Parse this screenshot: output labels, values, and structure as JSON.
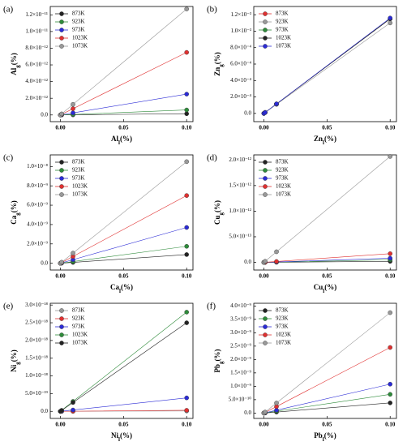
{
  "chart_data": [
    {
      "type": "line",
      "label": "(a)",
      "ylabel": [
        "Al",
        "g",
        "(%)"
      ],
      "xlabel": [
        "Al",
        "l",
        "(%)"
      ],
      "x": [
        0,
        0.001,
        0.01,
        0.1
      ],
      "xlim": [
        -0.008,
        0.105
      ],
      "xticks": [
        {
          "value": 0,
          "label": "0.00"
        },
        {
          "value": 0.05,
          "label": "0.05"
        },
        {
          "value": 0.1,
          "label": "0.10"
        }
      ],
      "ylim": [
        -8e-13,
        1.3e-11
      ],
      "yticks": [
        {
          "value": 0,
          "label": "0.0"
        },
        {
          "value": 2e-12,
          "label": "2.0×10⁻¹²"
        },
        {
          "value": 4e-12,
          "label": "4.0×10⁻¹²"
        },
        {
          "value": 6e-12,
          "label": "6.0×10⁻¹²"
        },
        {
          "value": 8e-12,
          "label": "8.0×10⁻¹²"
        },
        {
          "value": 1e-11,
          "label": "1.0×10⁻¹¹"
        },
        {
          "value": 1.2e-11,
          "label": "1.2×10⁻¹¹"
        }
      ],
      "series": [
        {
          "name": "873K",
          "color": "#222222",
          "values": [
            0,
            1.5e-15,
            1.5e-14,
            1.5e-13
          ]
        },
        {
          "name": "923K",
          "color": "#2e8b3a",
          "values": [
            0,
            6e-15,
            6e-14,
            6e-13
          ]
        },
        {
          "name": "973K",
          "color": "#2b2bd6",
          "values": [
            0,
            2.5e-14,
            2.5e-13,
            2.5e-12
          ]
        },
        {
          "name": "1023K",
          "color": "#e03030",
          "values": [
            0,
            7.5e-14,
            7.5e-13,
            7.5e-12
          ]
        },
        {
          "name": "1073K",
          "color": "#999999",
          "values": [
            0,
            1.27e-13,
            1.27e-12,
            1.27e-11
          ]
        }
      ]
    },
    {
      "type": "line",
      "label": "(b)",
      "ylabel": [
        "Zn",
        "g",
        "(%)"
      ],
      "xlabel": [
        "Zn",
        "l",
        "(%)"
      ],
      "x": [
        0,
        0.001,
        0.01,
        0.1
      ],
      "xlim": [
        -0.008,
        0.105
      ],
      "xticks": [
        {
          "value": 0,
          "label": "0.00"
        },
        {
          "value": 0.05,
          "label": "0.05"
        },
        {
          "value": 0.1,
          "label": "0.10"
        }
      ],
      "ylim": [
        -0.0001,
        0.0013
      ],
      "yticks": [
        {
          "value": 0,
          "label": "0.0"
        },
        {
          "value": 0.0002,
          "label": "2.0×10⁻⁴"
        },
        {
          "value": 0.0004,
          "label": "4.0×10⁻⁴"
        },
        {
          "value": 0.0006,
          "label": "6.0×10⁻⁴"
        },
        {
          "value": 0.0008,
          "label": "8.0×10⁻⁴"
        },
        {
          "value": 0.001,
          "label": "1.0×10⁻³"
        },
        {
          "value": 0.0012,
          "label": "1.2×10⁻³"
        }
      ],
      "series": [
        {
          "name": "873K",
          "color": "#e03030",
          "values": [
            0,
            1.15e-05,
            0.000115,
            0.00115
          ]
        },
        {
          "name": "923K",
          "color": "#999999",
          "values": [
            0,
            1.1e-05,
            0.00011,
            0.0011
          ]
        },
        {
          "name": "973K",
          "color": "#2e8b3a",
          "values": [
            0,
            1.15e-05,
            0.000115,
            0.00115
          ]
        },
        {
          "name": "1023K",
          "color": "#222222",
          "values": [
            0,
            1.15e-05,
            0.000115,
            0.00115
          ]
        },
        {
          "name": "1073K",
          "color": "#2b2bd6",
          "values": [
            0,
            1.16e-05,
            0.000116,
            0.00116
          ]
        }
      ]
    },
    {
      "type": "line",
      "label": "(c)",
      "ylabel": [
        "Ca",
        "g",
        "(%)"
      ],
      "xlabel": [
        "Ca",
        "l",
        "(%)"
      ],
      "x": [
        0,
        0.001,
        0.01,
        0.1
      ],
      "xlim": [
        -0.008,
        0.105
      ],
      "xticks": [
        {
          "value": 0,
          "label": "0.00"
        },
        {
          "value": 0.05,
          "label": "0.05"
        },
        {
          "value": 0.1,
          "label": "0.10"
        }
      ],
      "ylim": [
        -7e-10,
        1.12e-08
      ],
      "yticks": [
        {
          "value": 0,
          "label": "0.0"
        },
        {
          "value": 2e-09,
          "label": "2.0×10⁻⁹"
        },
        {
          "value": 4e-09,
          "label": "4.0×10⁻⁹"
        },
        {
          "value": 6e-09,
          "label": "6.0×10⁻⁹"
        },
        {
          "value": 8e-09,
          "label": "8.0×10⁻⁹"
        },
        {
          "value": 1e-08,
          "label": "1.0×10⁻⁸"
        }
      ],
      "series": [
        {
          "name": "873K",
          "color": "#222222",
          "values": [
            0,
            9e-12,
            9e-11,
            9e-10
          ]
        },
        {
          "name": "923K",
          "color": "#2e8b3a",
          "values": [
            0,
            1.75e-11,
            1.75e-10,
            1.75e-09
          ]
        },
        {
          "name": "973K",
          "color": "#2b2bd6",
          "values": [
            0,
            3.7e-11,
            3.7e-10,
            3.7e-09
          ]
        },
        {
          "name": "1023K",
          "color": "#e03030",
          "values": [
            0,
            7e-11,
            7e-10,
            7e-09
          ]
        },
        {
          "name": "1073K",
          "color": "#999999",
          "values": [
            0,
            1.05e-10,
            1.05e-09,
            1.05e-08
          ]
        }
      ]
    },
    {
      "type": "line",
      "label": "(d)",
      "ylabel": [
        "Cu",
        "g",
        "(%)"
      ],
      "xlabel": [
        "Cu",
        "l",
        "(%)"
      ],
      "x": [
        0,
        0.001,
        0.01,
        0.1
      ],
      "xlim": [
        -0.008,
        0.105
      ],
      "xticks": [
        {
          "value": 0,
          "label": "0.00"
        },
        {
          "value": 0.05,
          "label": "0.05"
        },
        {
          "value": 0.1,
          "label": "0.10"
        }
      ],
      "ylim": [
        -1.5e-13,
        2.1e-12
      ],
      "yticks": [
        {
          "value": 0,
          "label": "0.0"
        },
        {
          "value": 5e-13,
          "label": "5.0×10⁻¹³"
        },
        {
          "value": 1e-12,
          "label": "1.0×10⁻¹²"
        },
        {
          "value": 1.5e-12,
          "label": "1.5×10⁻¹²"
        },
        {
          "value": 2e-12,
          "label": "2.0×10⁻¹²"
        }
      ],
      "series": [
        {
          "name": "873K",
          "color": "#222222",
          "values": [
            0,
            2e-16,
            2e-15,
            2e-14
          ]
        },
        {
          "name": "923K",
          "color": "#2e8b3a",
          "values": [
            0,
            5e-16,
            5e-15,
            5e-14
          ]
        },
        {
          "name": "973K",
          "color": "#2b2bd6",
          "values": [
            0,
            8e-16,
            8e-15,
            8e-14
          ]
        },
        {
          "name": "1023K",
          "color": "#e03030",
          "values": [
            0,
            1.7e-15,
            1.7e-14,
            1.7e-13
          ]
        },
        {
          "name": "1073K",
          "color": "#999999",
          "values": [
            0,
            2.07e-14,
            2.07e-13,
            2.07e-12
          ]
        }
      ]
    },
    {
      "type": "line",
      "label": "(e)",
      "ylabel": [
        "Ni",
        "g",
        "(%)"
      ],
      "xlabel": [
        "Ni",
        "l",
        "(%)"
      ],
      "x": [
        0,
        0.001,
        0.01,
        0.1
      ],
      "xlim": [
        -0.008,
        0.105
      ],
      "xticks": [
        {
          "value": 0,
          "label": "0.00"
        },
        {
          "value": 0.05,
          "label": "0.05"
        },
        {
          "value": 0.1,
          "label": "0.10"
        }
      ],
      "ylim": [
        -2e-19,
        3.05e-18
      ],
      "yticks": [
        {
          "value": 0,
          "label": "0.0"
        },
        {
          "value": 5e-19,
          "label": "5.0×10⁻¹⁹"
        },
        {
          "value": 1e-18,
          "label": "1.0×10⁻¹⁸"
        },
        {
          "value": 1.5e-18,
          "label": "1.5×10⁻¹⁸"
        },
        {
          "value": 2e-18,
          "label": "2.0×10⁻¹⁸"
        },
        {
          "value": 2.5e-18,
          "label": "2.5×10⁻¹⁸"
        },
        {
          "value": 3e-18,
          "label": "3.0×10⁻¹⁸"
        }
      ],
      "series": [
        {
          "name": "873K",
          "color": "#999999",
          "values": [
            0,
            1e-22,
            1e-21,
            1e-20
          ]
        },
        {
          "name": "923K",
          "color": "#e03030",
          "values": [
            0,
            3e-22,
            3e-21,
            3e-20
          ]
        },
        {
          "name": "973K",
          "color": "#2b2bd6",
          "values": [
            0,
            3.8e-21,
            3.8e-20,
            3.8e-19
          ]
        },
        {
          "name": "1023K",
          "color": "#2e8b3a",
          "values": [
            0,
            2.8e-20,
            2.8e-19,
            2.8e-18
          ]
        },
        {
          "name": "1073K",
          "color": "#222222",
          "values": [
            0,
            2.5e-20,
            2.5e-19,
            2.5e-18
          ]
        }
      ]
    },
    {
      "type": "line",
      "label": "(f)",
      "ylabel": [
        "Pb",
        "g",
        "(%)"
      ],
      "xlabel": [
        "Pb",
        "l",
        "(%)"
      ],
      "x": [
        0,
        0.001,
        0.01,
        0.1
      ],
      "xlim": [
        -0.008,
        0.105
      ],
      "xticks": [
        {
          "value": 0,
          "label": "0.00"
        },
        {
          "value": 0.05,
          "label": "0.05"
        },
        {
          "value": 0.1,
          "label": "0.10"
        }
      ],
      "ylim": [
        -2e-10,
        4.1e-09
      ],
      "yticks": [
        {
          "value": 0,
          "label": "0.0"
        },
        {
          "value": 5e-10,
          "label": "5.0×10⁻¹⁰"
        },
        {
          "value": 1e-09,
          "label": "1.0×10⁻⁹"
        },
        {
          "value": 1.5e-09,
          "label": "1.5×10⁻⁹"
        },
        {
          "value": 2e-09,
          "label": "2.0×10⁻⁹"
        },
        {
          "value": 2.5e-09,
          "label": "2.5×10⁻⁹"
        },
        {
          "value": 3e-09,
          "label": "3.0×10⁻⁹"
        },
        {
          "value": 3.5e-09,
          "label": "3.5×10⁻⁹"
        },
        {
          "value": 4e-09,
          "label": "4.0×10⁻⁹"
        }
      ],
      "series": [
        {
          "name": "873K",
          "color": "#222222",
          "values": [
            0,
            3.8e-12,
            3.8e-11,
            3.8e-10
          ]
        },
        {
          "name": "923K",
          "color": "#2e8b3a",
          "values": [
            0,
            7e-12,
            7e-11,
            7e-10
          ]
        },
        {
          "name": "973K",
          "color": "#2b2bd6",
          "values": [
            0,
            1.08e-11,
            1.08e-10,
            1.08e-09
          ]
        },
        {
          "name": "1023K",
          "color": "#e03030",
          "values": [
            0,
            2.45e-11,
            2.45e-10,
            2.45e-09
          ]
        },
        {
          "name": "1073K",
          "color": "#999999",
          "values": [
            0,
            3.75e-11,
            3.75e-10,
            3.75e-09
          ]
        }
      ]
    }
  ]
}
